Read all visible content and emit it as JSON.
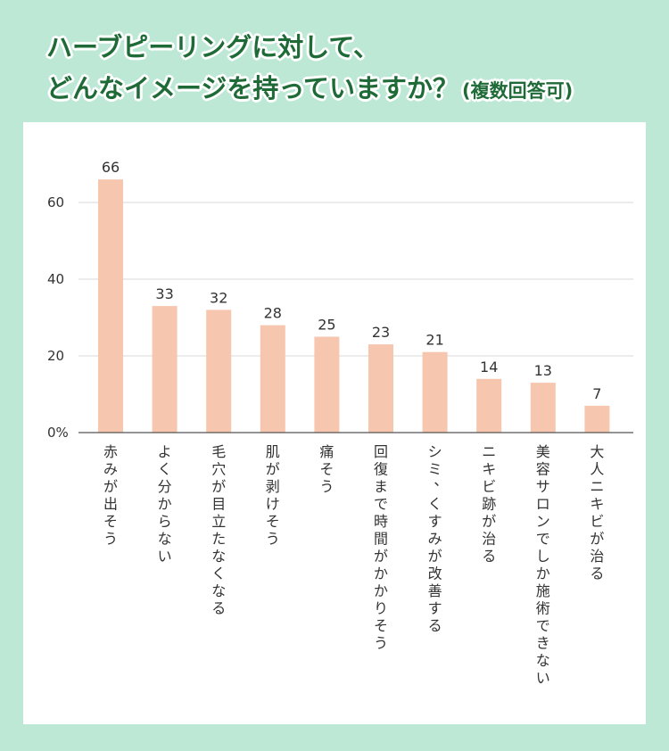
{
  "title": {
    "line1": "ハーブピーリングに対して、",
    "line2": "どんなイメージを持っていますか？",
    "note": "(複数回答可)"
  },
  "chart_data": {
    "type": "bar",
    "categories": [
      "赤みが出そう",
      "よく分からない",
      "毛穴が目立たなくなる",
      "肌が剥けそう",
      "痛そう",
      "回復まで時間がかかりそう",
      "シミ、くすみが改善する",
      "ニキビ跡が治る",
      "美容サロンでしか施術できない",
      "大人ニキビが治る"
    ],
    "values": [
      66,
      33,
      32,
      28,
      25,
      23,
      21,
      14,
      13,
      7
    ],
    "yticks": [
      "0%",
      "20",
      "40",
      "60"
    ],
    "ylim": [
      0,
      60
    ],
    "grid": true,
    "colors": {
      "bar": "#f6c6ae",
      "grid": "#d9d9d9",
      "axis": "#555555"
    }
  }
}
